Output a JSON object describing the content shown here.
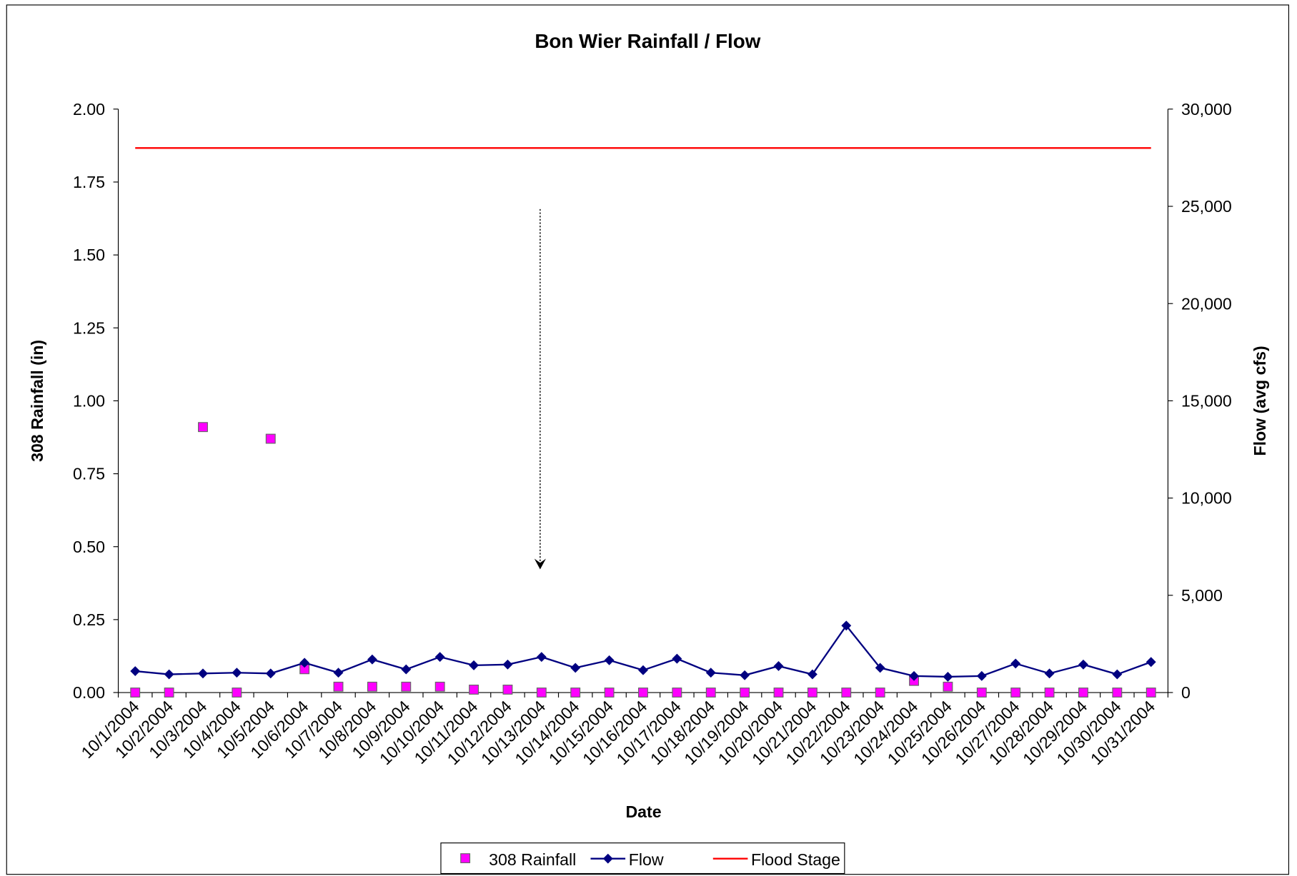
{
  "chart_data": {
    "type": "combo",
    "title": "Bon Wier Rainfall / Flow",
    "x_label": "Date",
    "y_label": "308 Rainfall (in)",
    "y2_label": "Flow (avg cfs)",
    "categories": [
      "10/1/2004",
      "10/2/2004",
      "10/3/2004",
      "10/4/2004",
      "10/5/2004",
      "10/6/2004",
      "10/7/2004",
      "10/8/2004",
      "10/9/2004",
      "10/10/2004",
      "10/11/2004",
      "10/12/2004",
      "10/13/2004",
      "10/14/2004",
      "10/15/2004",
      "10/16/2004",
      "10/17/2004",
      "10/18/2004",
      "10/19/2004",
      "10/20/2004",
      "10/21/2004",
      "10/22/2004",
      "10/23/2004",
      "10/24/2004",
      "10/25/2004",
      "10/26/2004",
      "10/27/2004",
      "10/28/2004",
      "10/29/2004",
      "10/30/2004",
      "10/31/2004"
    ],
    "series": [
      {
        "name": "308 Rainfall",
        "type": "scatter",
        "axis": "y",
        "color": "#ff00ff",
        "values": [
          0,
          0,
          0.91,
          0,
          0.87,
          0.08,
          0.02,
          0.02,
          0.02,
          0.02,
          0.01,
          0.01,
          0,
          0,
          0,
          0,
          0,
          0,
          0,
          0,
          0,
          0,
          0,
          0.04,
          0.02,
          0,
          0,
          0,
          0,
          0,
          0
        ]
      },
      {
        "name": "Flow",
        "type": "line",
        "axis": "y2",
        "color": "#000080",
        "values": [
          1100,
          935,
          980,
          1020,
          980,
          1530,
          1020,
          1700,
          1190,
          1830,
          1400,
          1440,
          1830,
          1270,
          1660,
          1150,
          1740,
          1020,
          890,
          1360,
          935,
          3440,
          1270,
          850,
          810,
          850,
          1490,
          980,
          1440,
          935,
          1570
        ]
      },
      {
        "name": "Flood Stage",
        "type": "line",
        "axis": "y2",
        "color": "#ff0000",
        "marker": false,
        "values": [
          28000,
          28000,
          28000,
          28000,
          28000,
          28000,
          28000,
          28000,
          28000,
          28000,
          28000,
          28000,
          28000,
          28000,
          28000,
          28000,
          28000,
          28000,
          28000,
          28000,
          28000,
          28000,
          28000,
          28000,
          28000,
          28000,
          28000,
          28000,
          28000,
          28000,
          28000
        ]
      }
    ],
    "ylim": [
      0,
      2
    ],
    "yticks": [
      {
        "value": 0,
        "label": "0.00"
      },
      {
        "value": 0.25,
        "label": "0.25"
      },
      {
        "value": 0.5,
        "label": "0.50"
      },
      {
        "value": 0.75,
        "label": "0.75"
      },
      {
        "value": 1,
        "label": "1.00"
      },
      {
        "value": 1.25,
        "label": "1.25"
      },
      {
        "value": 1.5,
        "label": "1.50"
      },
      {
        "value": 1.75,
        "label": "1.75"
      },
      {
        "value": 2,
        "label": "2.00"
      }
    ],
    "y2lim": [
      0,
      30000
    ],
    "y2ticks": [
      0,
      {
        "value": 5000,
        "label": "5,000"
      },
      {
        "value": 10000,
        "label": "10,000"
      },
      {
        "value": 15000,
        "label": "15,000"
      },
      {
        "value": 20000,
        "label": "20,000"
      },
      {
        "value": 25000,
        "label": "25,000"
      },
      {
        "value": 30000,
        "label": "30,000"
      }
    ],
    "legend": "bottom",
    "grid": false
  }
}
